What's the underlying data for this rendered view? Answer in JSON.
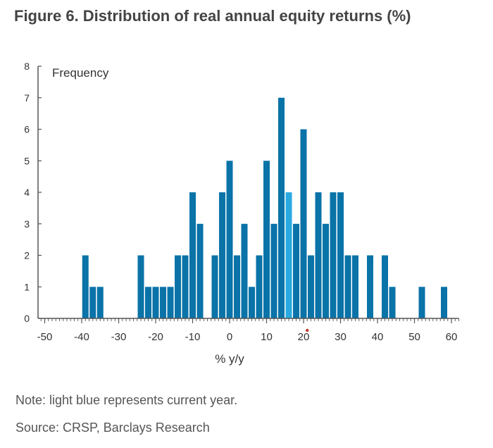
{
  "title": "Figure 6. Distribution of real annual equity returns (%)",
  "note": "Note: light blue represents current year.",
  "source": "Source: CRSP, Barclays Research",
  "colors": {
    "bar": "#0a73a8",
    "highlight": "#2aa9e0",
    "axis": "#555555",
    "marker": "#c0392b"
  },
  "chart_data": {
    "type": "bar",
    "ylabel": "Frequency",
    "xlabel": "% y/y",
    "bin_width": 2,
    "xlim": [
      -52,
      62
    ],
    "ylim": [
      0,
      8
    ],
    "xticks": [
      -50,
      -40,
      -30,
      -20,
      -10,
      0,
      10,
      20,
      30,
      40,
      50,
      60
    ],
    "yticks": [
      0,
      1,
      2,
      3,
      4,
      5,
      6,
      7,
      8
    ],
    "grid": false,
    "bins": [
      {
        "x": -39,
        "count": 2
      },
      {
        "x": -37,
        "count": 1
      },
      {
        "x": -35,
        "count": 1
      },
      {
        "x": -24,
        "count": 2
      },
      {
        "x": -22,
        "count": 1
      },
      {
        "x": -20,
        "count": 1
      },
      {
        "x": -18,
        "count": 1
      },
      {
        "x": -16,
        "count": 1
      },
      {
        "x": -14,
        "count": 2
      },
      {
        "x": -12,
        "count": 2
      },
      {
        "x": -10,
        "count": 4
      },
      {
        "x": -8,
        "count": 3
      },
      {
        "x": -4,
        "count": 2
      },
      {
        "x": -2,
        "count": 4
      },
      {
        "x": 0,
        "count": 5
      },
      {
        "x": 2,
        "count": 2
      },
      {
        "x": 4,
        "count": 3
      },
      {
        "x": 6,
        "count": 1
      },
      {
        "x": 8,
        "count": 2
      },
      {
        "x": 10,
        "count": 5
      },
      {
        "x": 12,
        "count": 3
      },
      {
        "x": 14,
        "count": 7
      },
      {
        "x": 16,
        "count": 4,
        "highlight": true
      },
      {
        "x": 18,
        "count": 3
      },
      {
        "x": 20,
        "count": 6
      },
      {
        "x": 22,
        "count": 2
      },
      {
        "x": 24,
        "count": 4
      },
      {
        "x": 26,
        "count": 3
      },
      {
        "x": 28,
        "count": 4
      },
      {
        "x": 30,
        "count": 4
      },
      {
        "x": 32,
        "count": 2
      },
      {
        "x": 34,
        "count": 2
      },
      {
        "x": 38,
        "count": 2
      },
      {
        "x": 42,
        "count": 2
      },
      {
        "x": 44,
        "count": 1
      },
      {
        "x": 52,
        "count": 1
      },
      {
        "x": 58,
        "count": 1
      }
    ],
    "marker_x": 21
  }
}
